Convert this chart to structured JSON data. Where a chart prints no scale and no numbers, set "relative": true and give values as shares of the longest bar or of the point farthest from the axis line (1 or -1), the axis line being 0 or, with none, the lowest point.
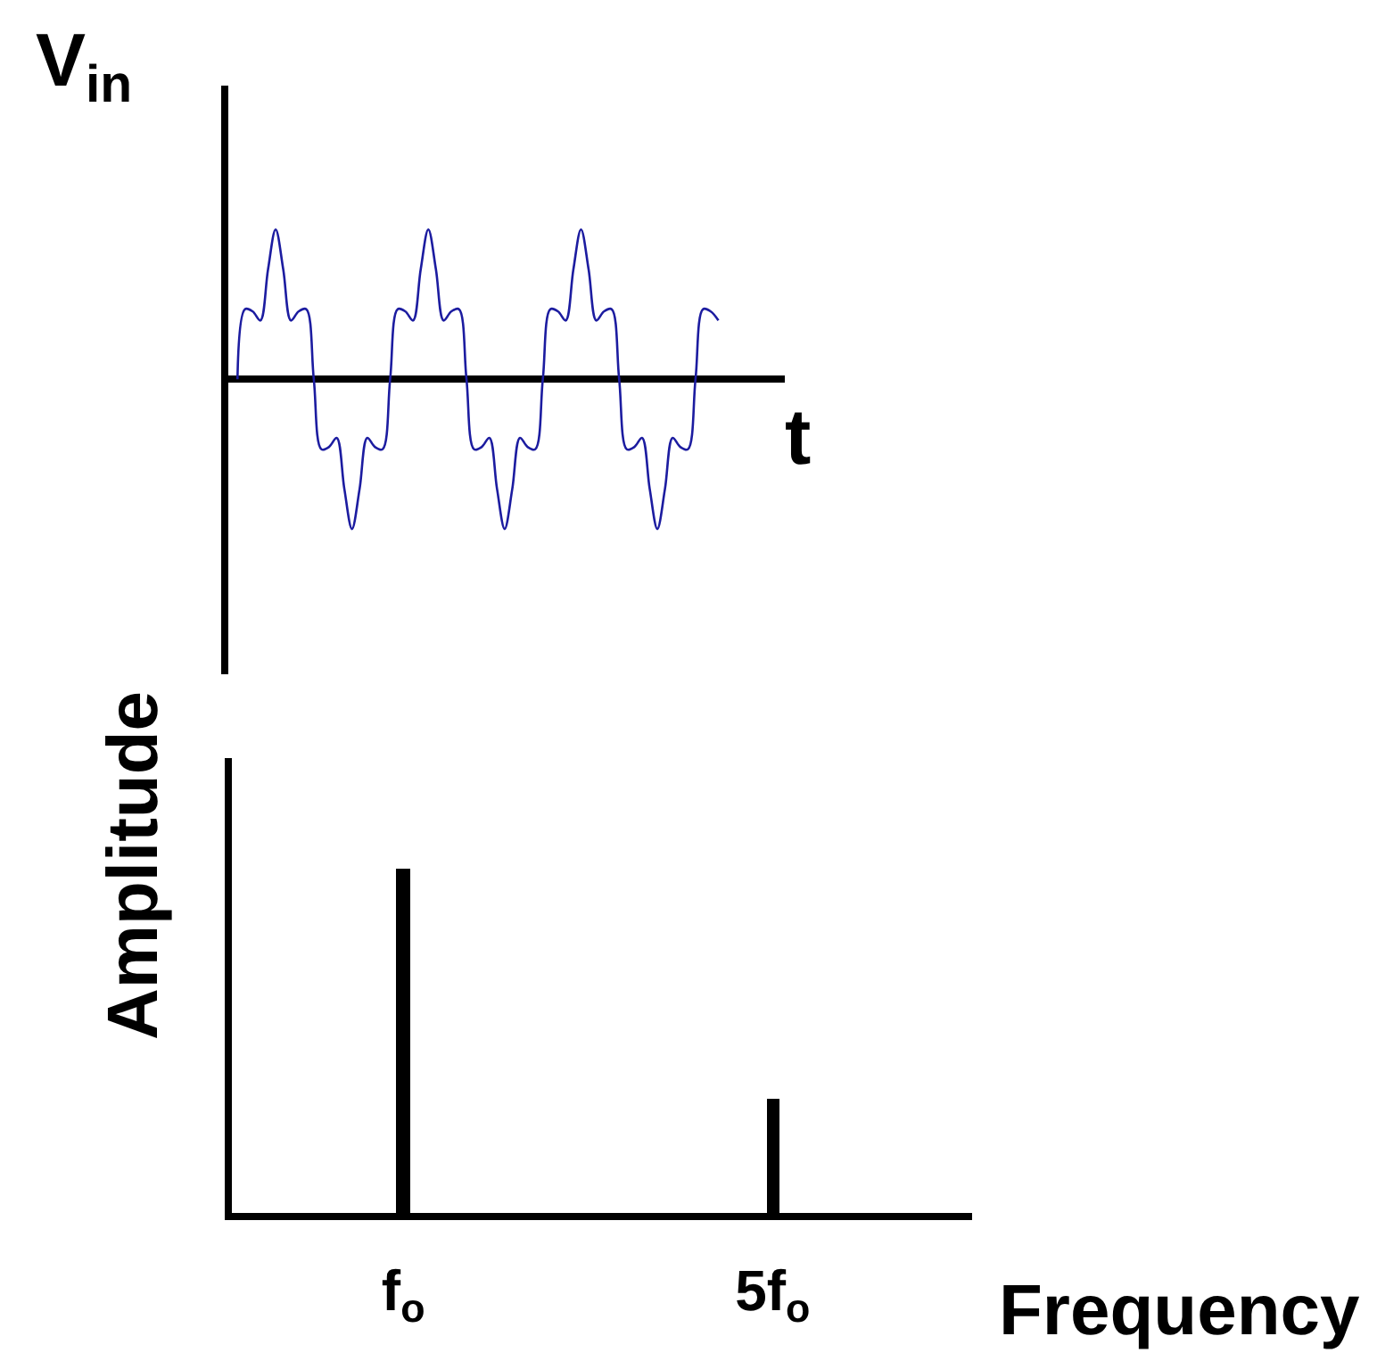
{
  "chart_data": [
    {
      "type": "line",
      "ylabel": "V$_{in}$",
      "xlabel": "t",
      "relative": true,
      "tick_labels": false,
      "marker": "none",
      "categories": [
        null,
        null,
        null,
        null,
        null,
        null,
        null,
        null,
        null,
        null,
        null,
        null,
        null,
        null,
        null,
        null,
        null,
        null,
        null,
        null,
        null,
        null,
        null,
        null,
        null,
        null,
        null,
        null,
        null,
        null,
        null,
        null,
        null,
        null,
        null,
        null,
        null,
        null,
        null,
        null,
        null,
        null,
        null,
        null,
        null,
        null,
        null,
        null,
        null,
        null,
        null,
        null,
        null,
        null,
        null,
        null,
        null,
        null,
        null,
        null,
        null,
        null,
        null,
        null
      ],
      "series": [
        {
          "color": "#1c1ca0",
          "values": [
            0,
            0.468,
            0.452,
            0.392,
            0.732,
            1,
            0.732,
            0.392,
            0.452,
            0.468,
            0,
            -0.468,
            -0.452,
            -0.392,
            -0.732,
            -1,
            -0.732,
            -0.392,
            -0.452,
            -0.468,
            0,
            0.468,
            0.452,
            0.392,
            0.732,
            1,
            0.732,
            0.392,
            0.452,
            0.468,
            0,
            -0.468,
            -0.452,
            -0.392,
            -0.732,
            -1,
            -0.732,
            -0.392,
            -0.452,
            -0.468,
            0,
            0.468,
            0.452,
            0.392,
            0.732,
            1,
            0.732,
            0.392,
            0.452,
            0.468,
            0,
            -0.468,
            -0.452,
            -0.392,
            -0.732,
            -1,
            -0.732,
            -0.392,
            -0.452,
            -0.468,
            0,
            0.468,
            0.452,
            0.392
          ]
        }
      ]
    },
    {
      "type": "bar",
      "ylabel": "Amplitude",
      "xlabel": "Frequency",
      "relative": true,
      "tick_labels": "x",
      "categories": [
        "f$_{o}$",
        "5f$_{o}$"
      ],
      "values": [
        1,
        0.33
      ],
      "color": "#000000"
    }
  ]
}
